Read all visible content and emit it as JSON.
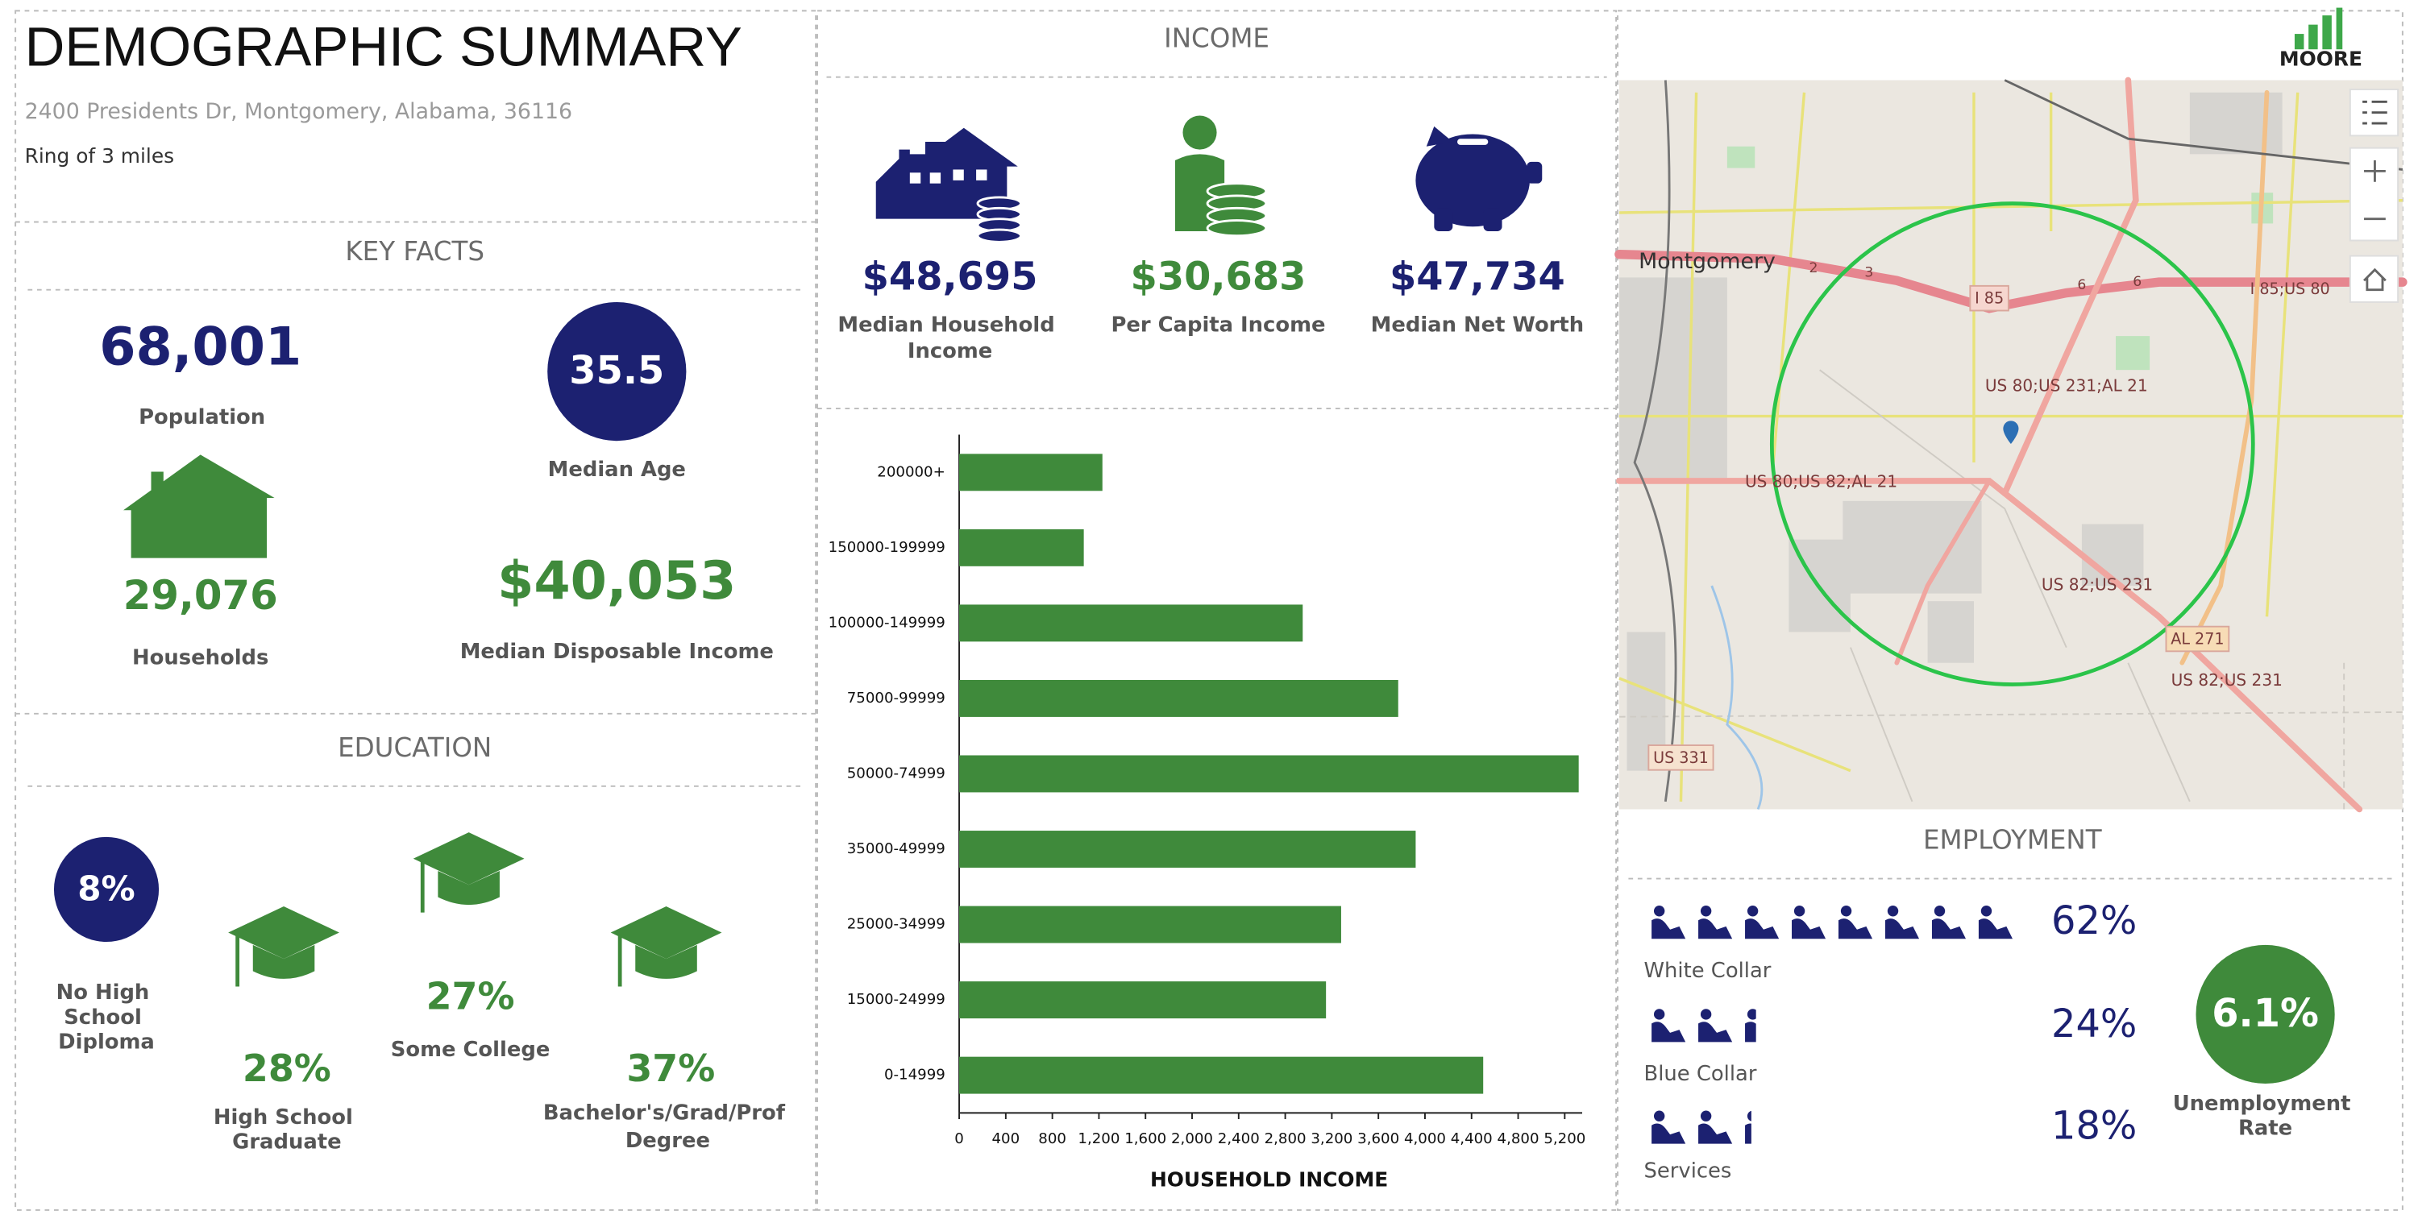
{
  "header": {
    "title": "DEMOGRAPHIC SUMMARY",
    "address": "2400 Presidents Dr, Montgomery, Alabama, 36116",
    "ring": "Ring of 3 miles"
  },
  "logo": "MOORE",
  "key_facts": {
    "title": "KEY FACTS",
    "population": {
      "value": "68,001",
      "label": "Population"
    },
    "median_age": {
      "value": "35.5",
      "label": "Median Age"
    },
    "households": {
      "value": "29,076",
      "label": "Households"
    },
    "median_disposable_income": {
      "value": "$40,053",
      "label": "Median Disposable Income"
    }
  },
  "education": {
    "title": "EDUCATION",
    "items": [
      {
        "value": "8%",
        "label_lines": [
          "No High",
          "School",
          "Diploma"
        ]
      },
      {
        "value": "28%",
        "label_lines": [
          "High School",
          "Graduate"
        ]
      },
      {
        "value": "27%",
        "label_lines": [
          "Some College"
        ]
      },
      {
        "value": "37%",
        "label_lines": [
          "Bachelor's/Grad/Prof",
          "Degree"
        ]
      }
    ]
  },
  "income": {
    "title": "INCOME",
    "items": [
      {
        "value": "$48,695",
        "label_lines": [
          "Median Household",
          "Income"
        ]
      },
      {
        "value": "$30,683",
        "label_lines": [
          "Per Capita Income"
        ]
      },
      {
        "value": "$47,734",
        "label_lines": [
          "Median Net Worth"
        ]
      }
    ]
  },
  "chart_data": {
    "type": "barh",
    "x_label": "HOUSEHOLD INCOME",
    "categories": [
      "200000+",
      "150000-199999",
      "100000-149999",
      "75000-99999",
      "50000-74999",
      "35000-49999",
      "25000-34999",
      "15000-24999",
      "0-14999"
    ],
    "values": [
      1230,
      1070,
      2950,
      3770,
      5320,
      3920,
      3280,
      3150,
      4500
    ],
    "color": "#3f8a3b",
    "xlim": [
      0,
      5350
    ],
    "xticks": [
      0,
      400,
      800,
      {
        "value": 1200,
        "label": "1,200"
      },
      {
        "value": 1600,
        "label": "1,600"
      },
      {
        "value": 2000,
        "label": "2,000"
      },
      {
        "value": 2400,
        "label": "2,400"
      },
      {
        "value": 2800,
        "label": "2,800"
      },
      {
        "value": 3200,
        "label": "3,200"
      },
      {
        "value": 3600,
        "label": "3,600"
      },
      {
        "value": 4000,
        "label": "4,000"
      },
      {
        "value": 4400,
        "label": "4,400"
      },
      {
        "value": 4800,
        "label": "4,800"
      },
      {
        "value": 5200,
        "label": "5,200"
      }
    ]
  },
  "map": {
    "labels": [
      "Montgomery",
      "I 85",
      "I 85;US 80",
      "US 80;US 231;AL 21",
      "US 80;US 82;AL 21",
      "US 82;US 231",
      "AL 271",
      "US 82;US 231",
      "US 331",
      "2",
      "3",
      "6",
      "6"
    ]
  },
  "employment": {
    "title": "EMPLOYMENT",
    "items": [
      {
        "value": "62%",
        "label": "White Collar"
      },
      {
        "value": "24%",
        "label": "Blue Collar"
      },
      {
        "value": "18%",
        "label": "Services"
      }
    ],
    "unemployment": {
      "value": "6.1%",
      "label_lines": [
        "Unemployment",
        "Rate"
      ]
    }
  }
}
